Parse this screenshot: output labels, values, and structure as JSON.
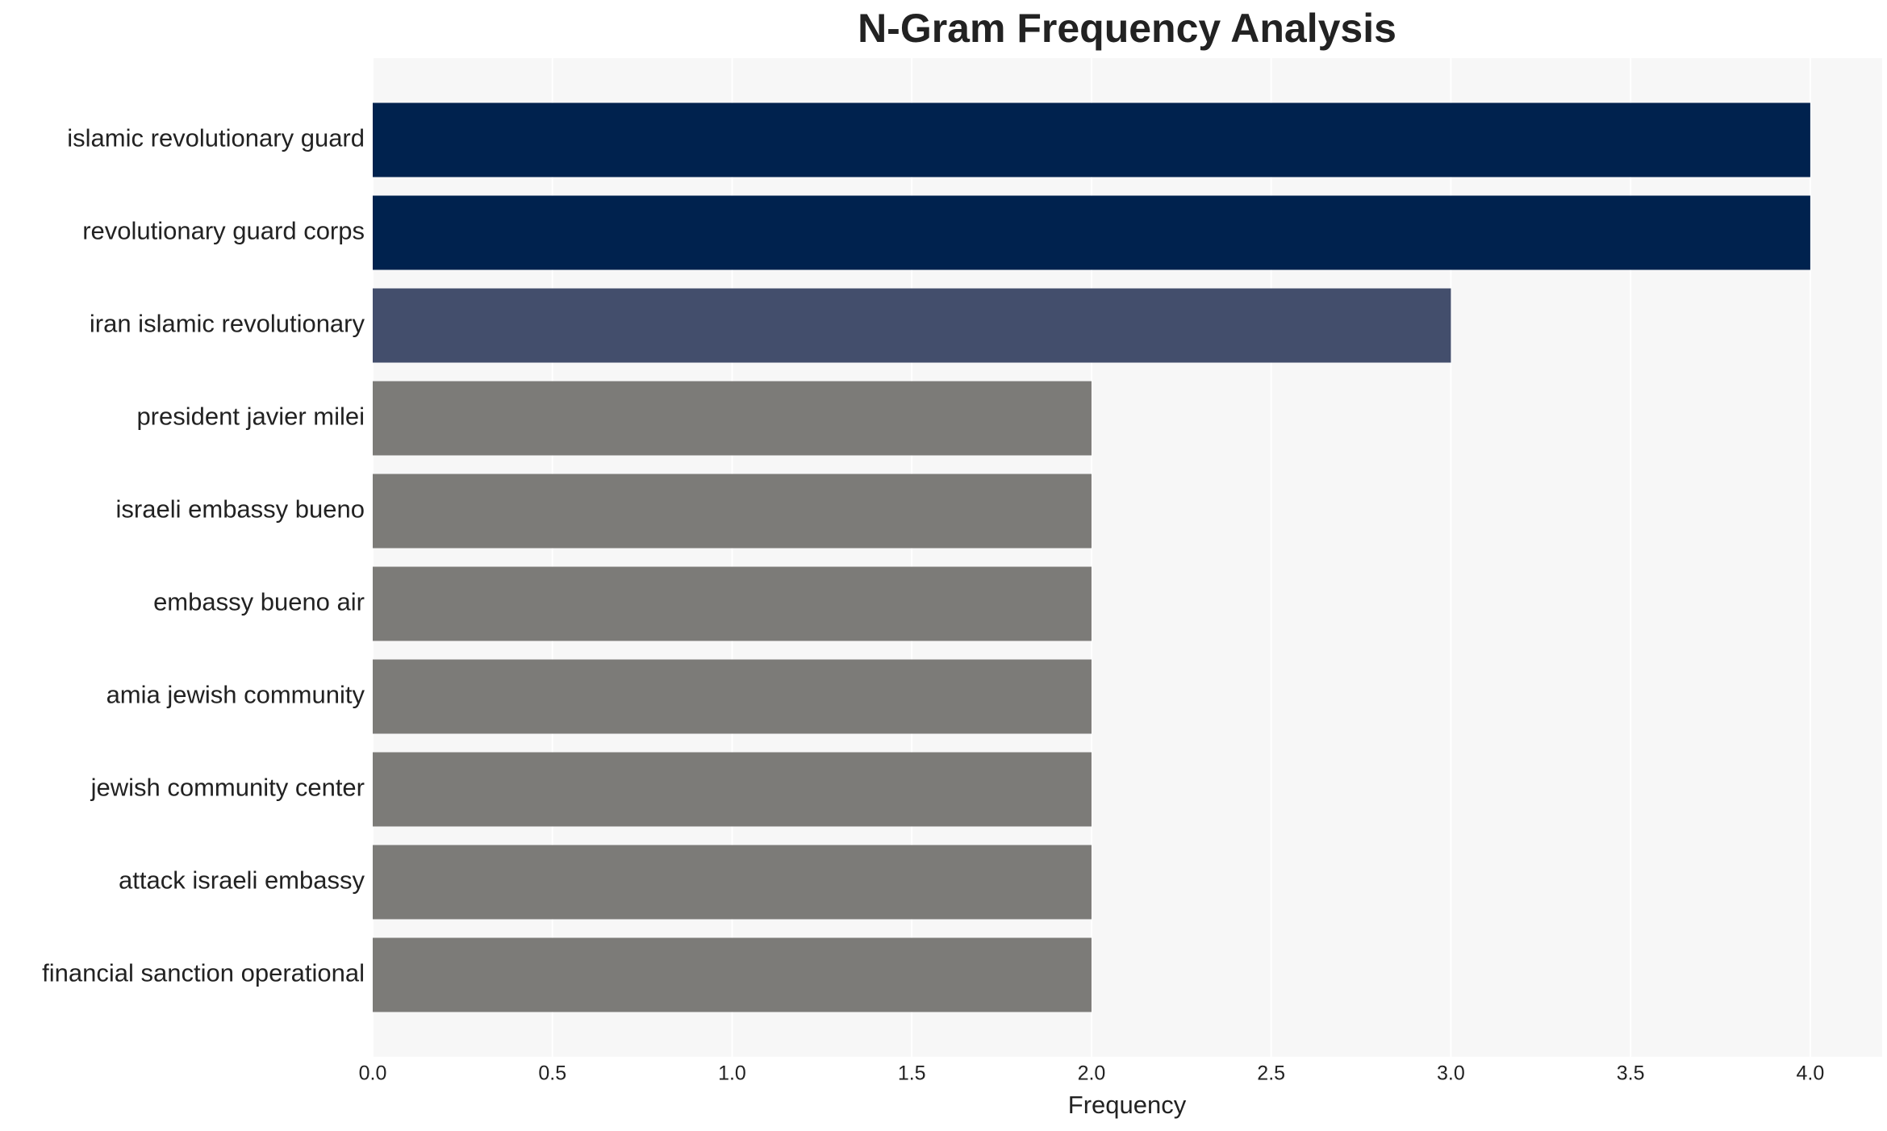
{
  "chart_data": {
    "type": "bar",
    "orientation": "horizontal",
    "title": "N-Gram Frequency Analysis",
    "x_label": "Frequency",
    "categories": [
      "islamic revolutionary guard",
      "revolutionary guard corps",
      "iran islamic revolutionary",
      "president javier milei",
      "israeli embassy bueno",
      "embassy bueno air",
      "amia jewish community",
      "jewish community center",
      "attack israeli embassy",
      "financial sanction operational"
    ],
    "values": [
      4,
      4,
      3,
      2,
      2,
      2,
      2,
      2,
      2,
      2
    ],
    "colors": [
      "#00224e",
      "#00224e",
      "#434e6c",
      "#7c7b78",
      "#7c7b78",
      "#7c7b78",
      "#7c7b78",
      "#7c7b78",
      "#7c7b78",
      "#7c7b78"
    ],
    "xlim": [
      0,
      4.2
    ],
    "xticks": [
      {
        "value": 0,
        "label": "0.0"
      },
      {
        "value": 0.5,
        "label": "0.5"
      },
      {
        "value": 1,
        "label": "1.0"
      },
      {
        "value": 1.5,
        "label": "1.5"
      },
      {
        "value": 2,
        "label": "2.0"
      },
      {
        "value": 2.5,
        "label": "2.5"
      },
      {
        "value": 3,
        "label": "3.0"
      },
      {
        "value": 3.5,
        "label": "3.5"
      },
      {
        "value": 4,
        "label": "4.0"
      }
    ],
    "grid": true
  }
}
